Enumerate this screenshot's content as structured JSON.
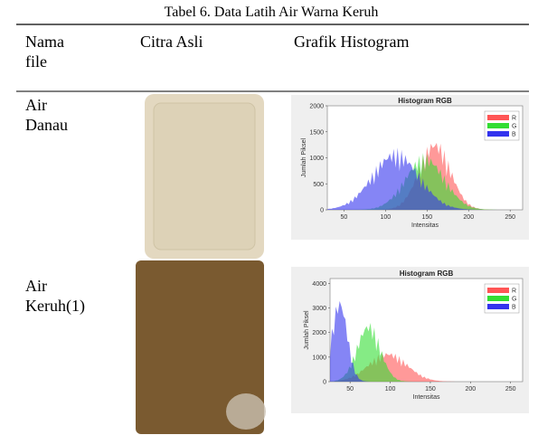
{
  "caption": "Tabel 6. Data Latih Air Warna Keruh",
  "table": {
    "header": [
      "Nama file",
      "Citra Asli",
      "Grafik Histogram"
    ],
    "rows": [
      {
        "name": "Air Danau",
        "histogram": {
          "title": "Histogram RGB",
          "ylabel": "Jumlah Piksel",
          "xlabel": "Intensitas",
          "xlim": [
            30,
            265
          ],
          "ylim": [
            0,
            2000
          ],
          "xticks": [
            50,
            100,
            150,
            200,
            250
          ],
          "yticks": [
            0,
            500,
            1000,
            1500,
            2000
          ],
          "legend": [
            "R",
            "G",
            "B"
          ]
        }
      },
      {
        "name": "Air Keruh(1)",
        "histogram": {
          "title": "Histogram RGB",
          "ylabel": "Jumlah Piksel",
          "xlabel": "Intensitas",
          "xlim": [
            25,
            265
          ],
          "ylim": [
            0,
            4200
          ],
          "xticks": [
            50,
            100,
            150,
            200,
            250
          ],
          "yticks": [
            0,
            1000,
            2000,
            3000,
            4000
          ],
          "legend": [
            "R",
            "G",
            "B"
          ]
        }
      }
    ]
  }
}
